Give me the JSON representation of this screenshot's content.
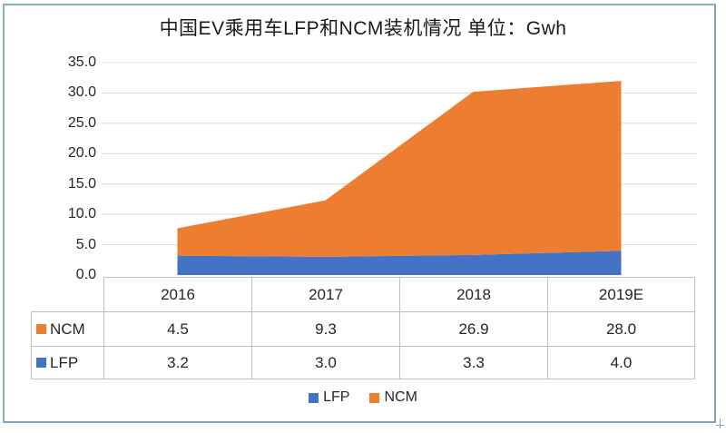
{
  "title": "中国EV乘用车LFP和NCM装机情况 单位：Gwh",
  "chart_data": {
    "type": "area",
    "stacked": true,
    "title": "中国EV乘用车LFP和NCM装机情况",
    "unit_label": "单位：Gwh",
    "categories": [
      "2016",
      "2017",
      "2018",
      "2019E"
    ],
    "series": [
      {
        "name": "LFP",
        "color": "#4472C4",
        "values": [
          3.2,
          3.0,
          3.3,
          4.0
        ]
      },
      {
        "name": "NCM",
        "color": "#ED7D31",
        "values": [
          4.5,
          9.3,
          26.9,
          28.0
        ]
      }
    ],
    "ylim": [
      0,
      35
    ],
    "ytick_step": 5,
    "ytick_labels": [
      "0.0",
      "5.0",
      "10.0",
      "15.0",
      "20.0",
      "25.0",
      "30.0",
      "35.0"
    ],
    "xlabel": "",
    "ylabel": "",
    "grid": true,
    "gridline_color": "#d9d9d9",
    "legend_position": "bottom",
    "legend_order": [
      "LFP",
      "NCM"
    ],
    "data_table": {
      "shown": true,
      "row_order": [
        "NCM",
        "LFP"
      ],
      "rows": [
        {
          "name": "NCM",
          "values": [
            "4.5",
            "9.3",
            "26.9",
            "28.0"
          ]
        },
        {
          "name": "LFP",
          "values": [
            "3.2",
            "3.0",
            "3.3",
            "4.0"
          ]
        }
      ]
    }
  }
}
